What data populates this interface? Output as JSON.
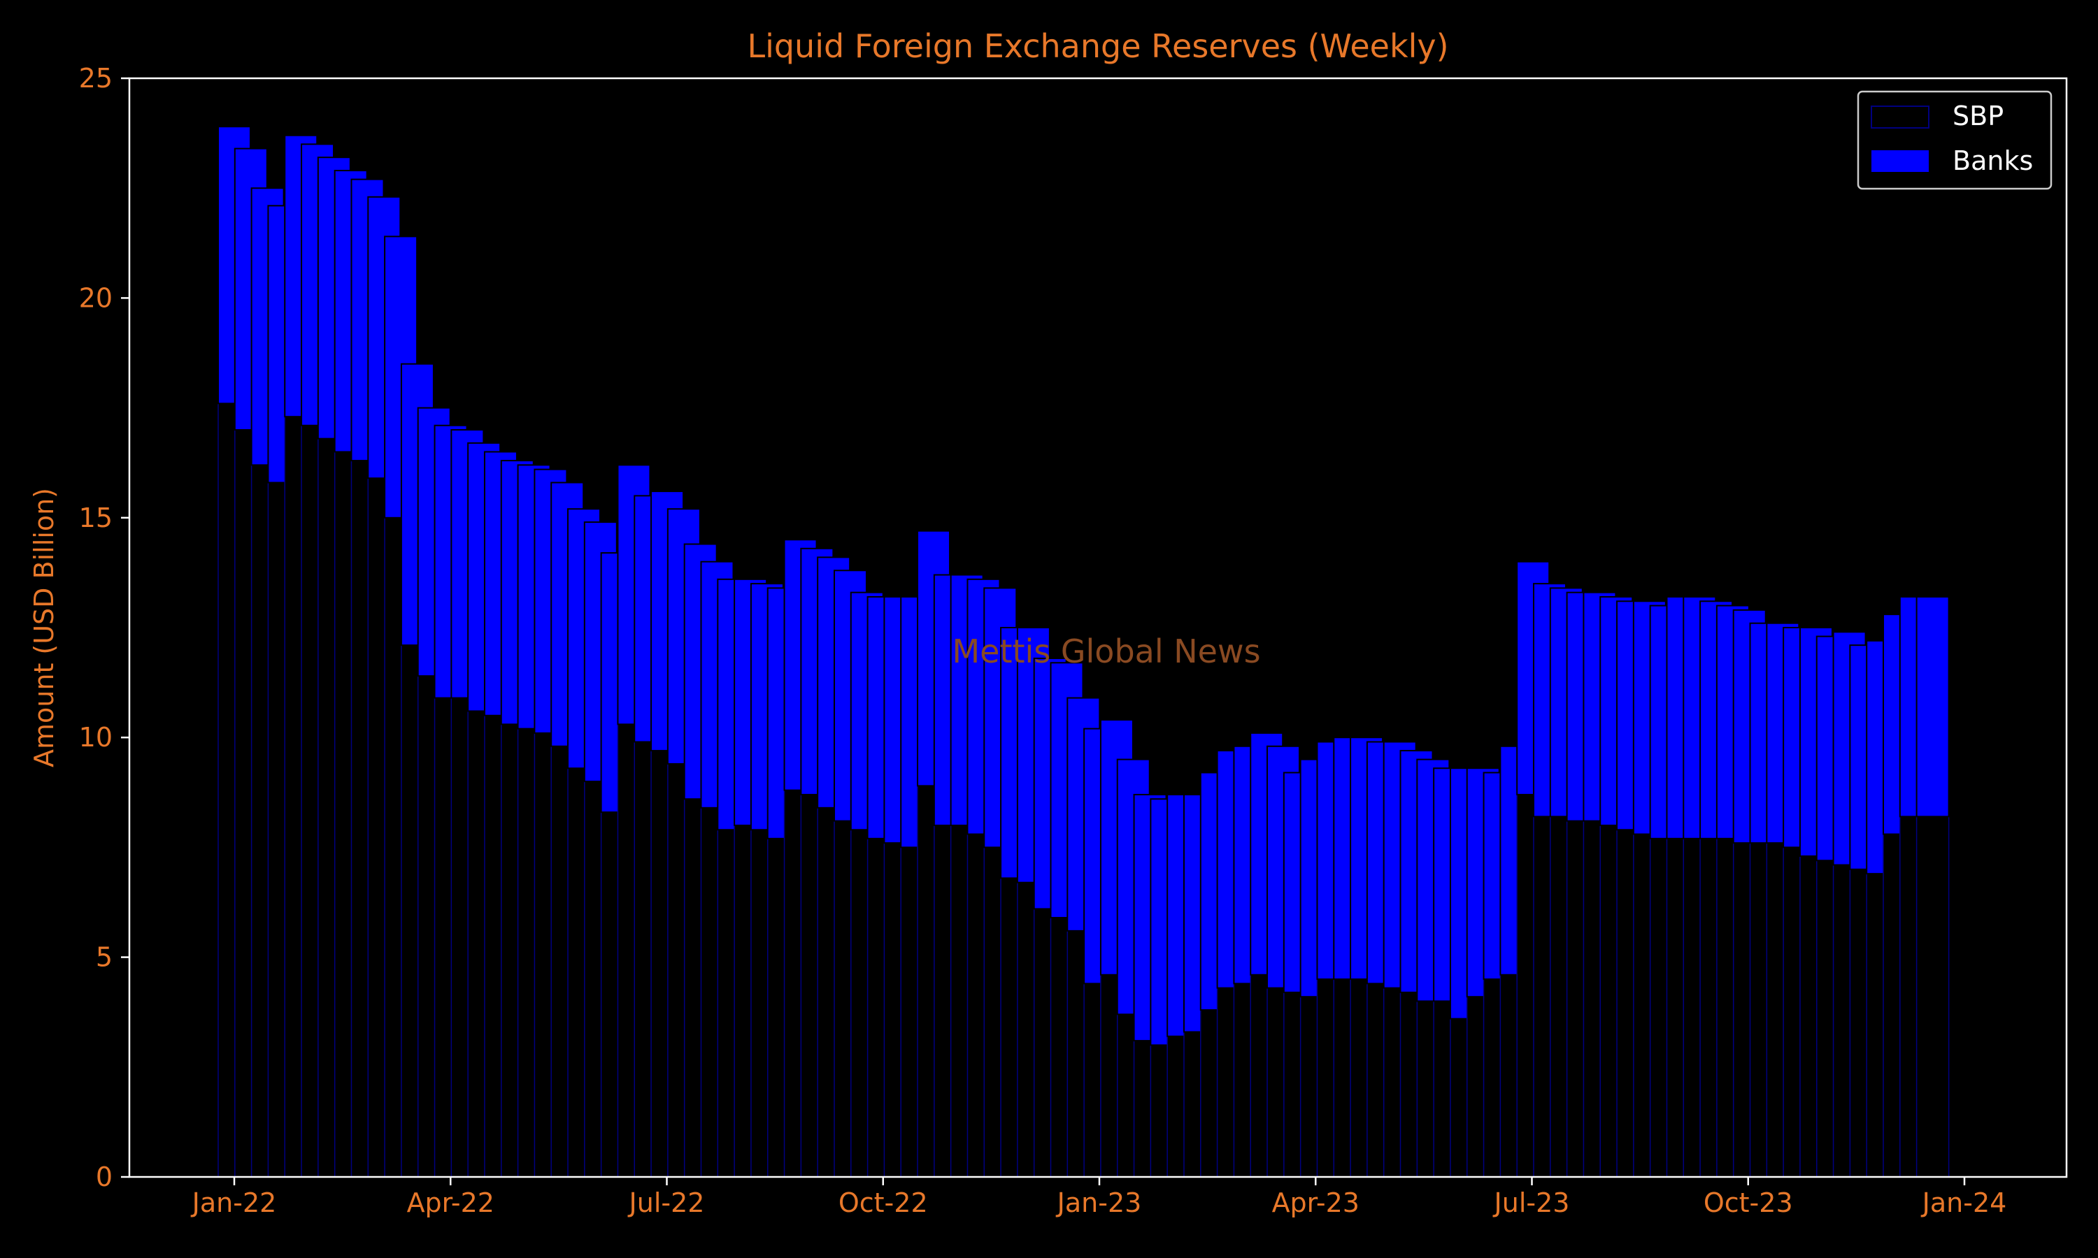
{
  "chart_data": {
    "type": "bar",
    "stacked": true,
    "title": "Liquid Foreign Exchange Reserves (Weekly)",
    "xlabel": "",
    "ylabel": "Amount (USD Billion)",
    "ylim": [
      0,
      25
    ],
    "yticks": [
      "0",
      "5",
      "10",
      "15",
      "20",
      "25"
    ],
    "xticks": [
      "Jan-22",
      "Apr-22",
      "Jul-22",
      "Oct-22",
      "Jan-23",
      "Apr-23",
      "Jul-23",
      "Oct-23",
      "Jan-24"
    ],
    "grid": false,
    "legend_position": "top-right",
    "watermark": "Mettis Global News",
    "colors": {
      "background": "#000000",
      "text": "#e8782a",
      "sbp_fill": "#000000",
      "sbp_edge": "#000080",
      "banks_fill": "#0000ff",
      "axes": "#ffffff"
    },
    "series": [
      {
        "name": "SBP",
        "values": [
          17.6,
          17.0,
          16.2,
          15.8,
          17.3,
          17.1,
          16.8,
          16.5,
          16.3,
          15.9,
          15.0,
          12.1,
          11.4,
          10.9,
          10.9,
          10.6,
          10.5,
          10.3,
          10.2,
          10.1,
          9.8,
          9.3,
          9.0,
          8.3,
          10.3,
          9.9,
          9.7,
          9.4,
          8.6,
          8.4,
          7.9,
          8.0,
          7.9,
          7.7,
          8.8,
          8.7,
          8.4,
          8.1,
          7.9,
          7.7,
          7.6,
          7.5,
          8.9,
          8.0,
          8.0,
          7.8,
          7.5,
          6.8,
          6.7,
          6.1,
          5.9,
          5.6,
          4.4,
          4.6,
          3.7,
          3.1,
          3.0,
          3.2,
          3.3,
          3.8,
          4.3,
          4.4,
          4.6,
          4.3,
          4.2,
          4.1,
          4.5,
          4.5,
          4.5,
          4.4,
          4.3,
          4.2,
          4.0,
          4.0,
          3.6,
          4.1,
          4.5,
          4.6,
          8.7,
          8.2,
          8.2,
          8.1,
          8.1,
          8.0,
          7.9,
          7.8,
          7.7,
          7.7,
          7.7,
          7.7,
          7.7,
          7.6,
          7.6,
          7.6,
          7.5,
          7.3,
          7.2,
          7.1,
          7.0,
          6.9,
          7.8,
          8.2,
          8.2
        ],
        "totals": [
          23.9,
          23.4,
          22.5,
          22.1,
          23.7,
          23.5,
          23.2,
          22.9,
          22.7,
          22.3,
          21.4,
          18.5,
          17.5,
          17.1,
          17.0,
          16.7,
          16.5,
          16.3,
          16.2,
          16.1,
          15.8,
          15.2,
          14.9,
          14.2,
          16.2,
          15.5,
          15.6,
          15.2,
          14.4,
          14.0,
          13.6,
          13.6,
          13.5,
          13.4,
          14.5,
          14.3,
          14.1,
          13.8,
          13.3,
          13.2,
          13.2,
          13.2,
          14.7,
          13.7,
          13.7,
          13.6,
          13.4,
          12.5,
          12.5,
          11.8,
          11.7,
          10.9,
          10.2,
          10.4,
          9.5,
          8.7,
          8.6,
          8.7,
          8.7,
          9.2,
          9.7,
          9.8,
          10.1,
          9.8,
          9.2,
          9.5,
          9.9,
          10.0,
          10.0,
          9.9,
          9.9,
          9.7,
          9.5,
          9.3,
          9.3,
          9.3,
          9.2,
          9.8,
          14.0,
          13.5,
          13.4,
          13.3,
          13.3,
          13.2,
          13.1,
          13.1,
          13.0,
          13.2,
          13.2,
          13.1,
          13.0,
          12.9,
          12.6,
          12.6,
          12.5,
          12.5,
          12.3,
          12.4,
          12.1,
          12.2,
          12.8,
          13.2,
          13.2
        ]
      },
      {
        "name": "Banks",
        "values": [
          6.3,
          6.4,
          6.3,
          6.3,
          6.4,
          6.4,
          6.4,
          6.4,
          6.4,
          6.4,
          6.4,
          6.4,
          6.1,
          6.2,
          6.1,
          6.1,
          6.0,
          6.0,
          6.0,
          6.0,
          6.0,
          5.9,
          5.9,
          5.9,
          5.9,
          5.6,
          5.9,
          5.8,
          5.8,
          5.6,
          5.7,
          5.6,
          5.6,
          5.7,
          5.7,
          5.6,
          5.7,
          5.7,
          5.4,
          5.5,
          5.6,
          5.7,
          5.8,
          5.7,
          5.7,
          5.8,
          5.9,
          5.7,
          5.8,
          5.7,
          5.8,
          5.3,
          5.8,
          5.8,
          5.8,
          5.6,
          5.6,
          5.5,
          5.4,
          5.4,
          5.4,
          5.4,
          5.5,
          5.5,
          5.0,
          5.4,
          5.4,
          5.5,
          5.5,
          5.5,
          5.6,
          5.5,
          5.5,
          5.3,
          5.7,
          5.2,
          4.7,
          5.2,
          5.3,
          5.3,
          5.2,
          5.2,
          5.2,
          5.2,
          5.2,
          5.3,
          5.3,
          5.5,
          5.5,
          5.4,
          5.3,
          5.3,
          5.0,
          5.0,
          5.0,
          5.2,
          5.1,
          5.3,
          5.1,
          5.3,
          5.0,
          5.0,
          5.0
        ]
      }
    ]
  }
}
